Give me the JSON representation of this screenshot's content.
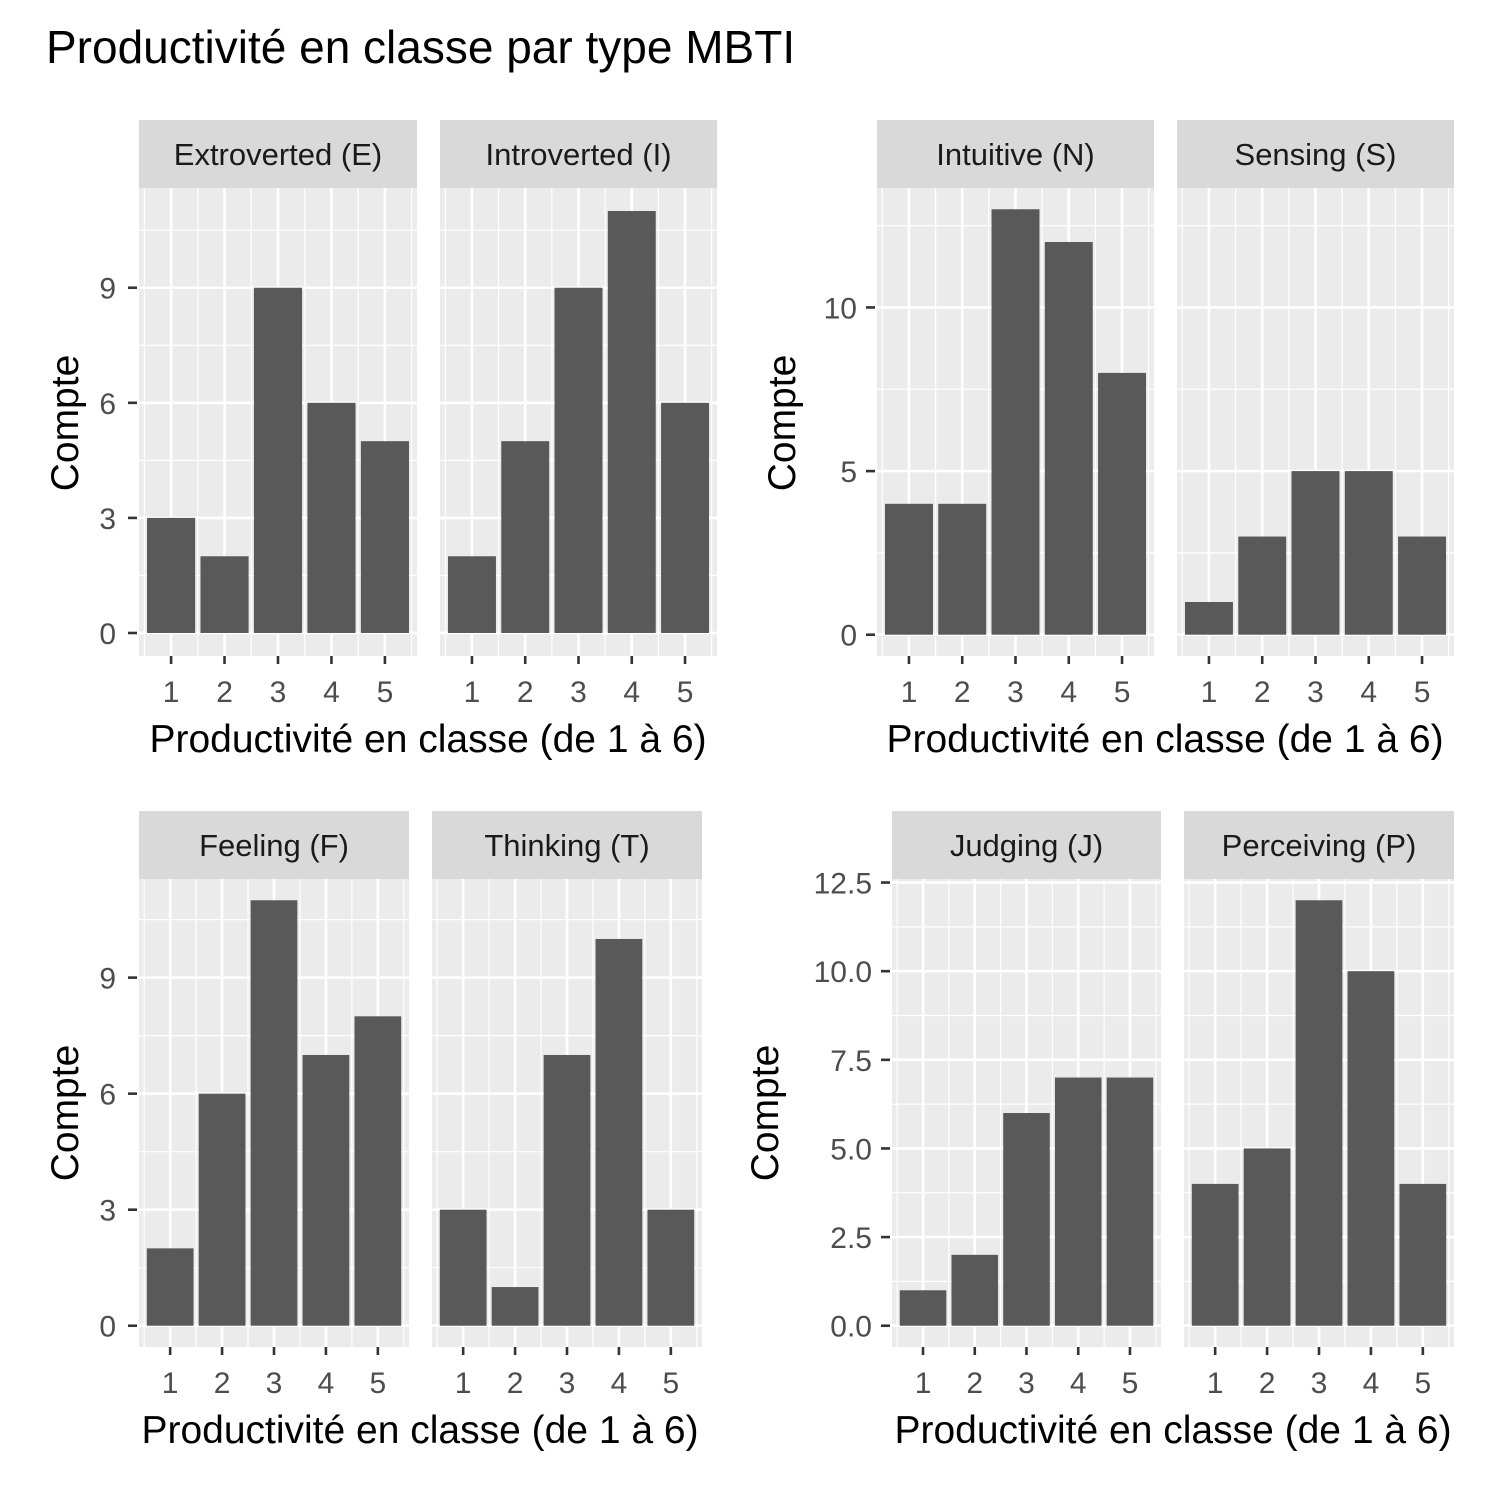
{
  "title": "Productivité en classe par type MBTI",
  "colors": {
    "bar": "#595959",
    "panel_background": "#ebebeb",
    "strip_background": "#d9d9d9",
    "grid": "#ffffff",
    "tick_text": "#4d4d4d",
    "axis_text": "#000000"
  },
  "chart_data": [
    {
      "type": "bar",
      "xlabel": "Productivité en classe (de 1 à 6)",
      "ylabel": "Compte",
      "categories": [
        "1",
        "2",
        "3",
        "4",
        "5"
      ],
      "ylim": [
        -0.6,
        11.6
      ],
      "yticks": [
        "0",
        "3",
        "6",
        "9"
      ],
      "ytick_values": [
        0,
        3,
        6,
        9
      ],
      "grid": true,
      "series": [
        {
          "name": "Extroverted (E)",
          "values": [
            3,
            2,
            9,
            6,
            5
          ]
        },
        {
          "name": "Introverted (I)",
          "values": [
            2,
            5,
            9,
            11,
            6
          ]
        }
      ]
    },
    {
      "type": "bar",
      "xlabel": "Productivité en classe (de 1 à 6)",
      "ylabel": "Compte",
      "categories": [
        "1",
        "2",
        "3",
        "4",
        "5"
      ],
      "ylim": [
        -0.65,
        13.65
      ],
      "yticks": [
        "0",
        "5",
        "10"
      ],
      "ytick_values": [
        0,
        5,
        10
      ],
      "grid": true,
      "series": [
        {
          "name": "Intuitive (N)",
          "values": [
            4,
            4,
            13,
            12,
            8
          ]
        },
        {
          "name": "Sensing (S)",
          "values": [
            1,
            3,
            5,
            5,
            3
          ]
        }
      ]
    },
    {
      "type": "bar",
      "xlabel": "Productivité en classe (de 1 à 6)",
      "ylabel": "Compte",
      "categories": [
        "1",
        "2",
        "3",
        "4",
        "5"
      ],
      "ylim": [
        -0.55,
        11.55
      ],
      "yticks": [
        "0",
        "3",
        "6",
        "9"
      ],
      "ytick_values": [
        0,
        3,
        6,
        9
      ],
      "grid": true,
      "series": [
        {
          "name": "Feeling (F)",
          "values": [
            2,
            6,
            11,
            7,
            8
          ]
        },
        {
          "name": "Thinking (T)",
          "values": [
            3,
            1,
            7,
            10,
            3
          ]
        }
      ]
    },
    {
      "type": "bar",
      "xlabel": "Productivité en classe (de 1 à 6)",
      "ylabel": "Compte",
      "categories": [
        "1",
        "2",
        "3",
        "4",
        "5"
      ],
      "ylim": [
        -0.6,
        12.6
      ],
      "yticks": [
        "0.0",
        "2.5",
        "5.0",
        "7.5",
        "10.0",
        "12.5"
      ],
      "ytick_values": [
        0,
        2.5,
        5,
        7.5,
        10,
        12.5
      ],
      "grid": true,
      "series": [
        {
          "name": "Judging (J)",
          "values": [
            1,
            2,
            6,
            7,
            7
          ]
        },
        {
          "name": "Perceiving (P)",
          "values": [
            4,
            5,
            12,
            10,
            4
          ]
        }
      ]
    }
  ]
}
